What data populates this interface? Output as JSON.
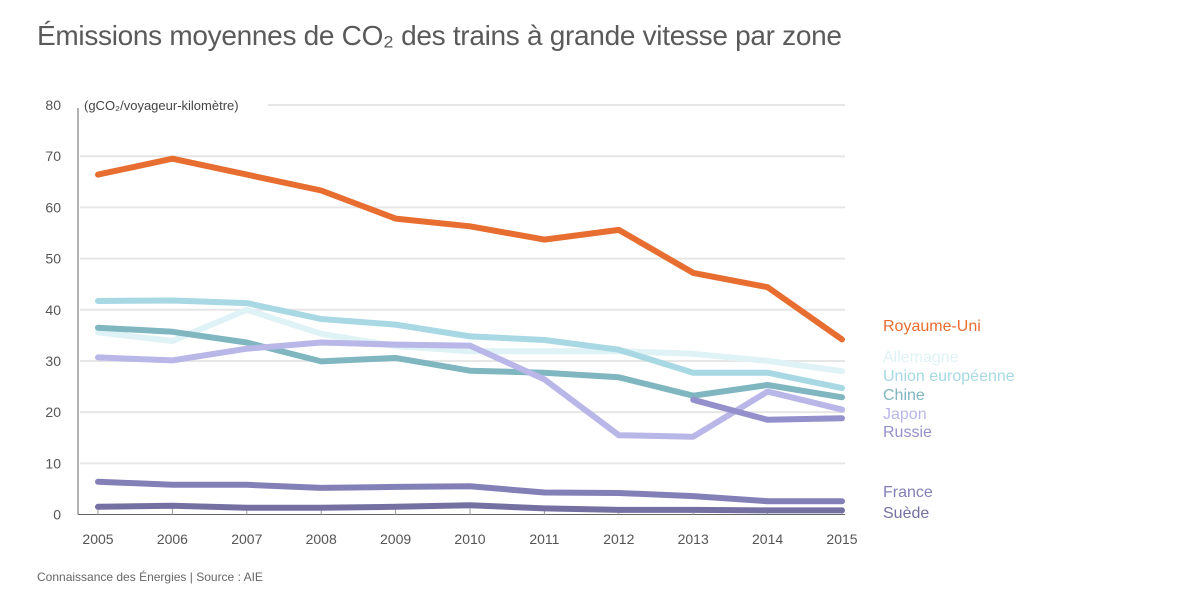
{
  "page": {
    "title": "Émissions moyennes de CO₂ des trains à grande vitesse par zone",
    "source": "Connaissance des Énergies | Source : AIE"
  },
  "chart_data": {
    "type": "line",
    "title": "Émissions moyennes de CO₂ des trains à grande vitesse par zone",
    "xlabel": "",
    "ylabel": "(gCO₂/voyageur-kilomètre)",
    "x": [
      2005,
      2006,
      2007,
      2008,
      2009,
      2010,
      2011,
      2012,
      2013,
      2014,
      2015
    ],
    "x_tick_labels": [
      "2005",
      "2006",
      "2007",
      "2008",
      "2009",
      "2010",
      "2011",
      "2012",
      "2013",
      "2014",
      "2015"
    ],
    "ylim": [
      0,
      80
    ],
    "y_ticks": [
      0,
      10,
      20,
      30,
      40,
      50,
      60,
      70,
      80
    ],
    "y_tick_labels": [
      "0",
      "10",
      "20",
      "30",
      "40",
      "50",
      "60",
      "70",
      "80"
    ],
    "grid": true,
    "legend_placement": "right (labels at line ends)",
    "series": [
      {
        "name": "Royaume-Uni",
        "color": "#e76e30",
        "values": [
          66.4,
          69.5,
          66.4,
          63.3,
          57.8,
          56.3,
          53.7,
          55.6,
          47.2,
          44.4,
          34.2
        ]
      },
      {
        "name": "Allemagne",
        "color": "#dff2f6",
        "values": [
          35.6,
          33.9,
          40.0,
          35.3,
          32.9,
          31.9,
          31.9,
          31.9,
          31.4,
          30.0,
          28.0
        ]
      },
      {
        "name": "Union européenne",
        "color": "#a7d8e3",
        "values": [
          41.7,
          41.8,
          41.3,
          38.2,
          37.1,
          34.8,
          34.1,
          32.2,
          27.7,
          27.7,
          24.7
        ]
      },
      {
        "name": "Chine",
        "color": "#7fb6c0",
        "values": [
          36.5,
          35.7,
          33.6,
          29.9,
          30.6,
          28.1,
          27.7,
          26.8,
          23.2,
          25.3,
          22.9
        ]
      },
      {
        "name": "Japon",
        "color": "#b9b6e8",
        "values": [
          30.7,
          30.1,
          32.4,
          33.6,
          33.2,
          33.0,
          26.4,
          15.5,
          15.2,
          24.0,
          20.5
        ]
      },
      {
        "name": "Russie",
        "color": "#9490cc",
        "values": [
          null,
          null,
          null,
          null,
          null,
          null,
          null,
          null,
          22.4,
          18.5,
          18.8
        ]
      },
      {
        "name": "France",
        "color": "#8380b8",
        "values": [
          6.4,
          5.8,
          5.8,
          5.2,
          5.4,
          5.5,
          4.3,
          4.2,
          3.6,
          2.6,
          2.6
        ]
      },
      {
        "name": "Suède",
        "color": "#7471a2",
        "values": [
          1.5,
          1.7,
          1.3,
          1.3,
          1.5,
          1.8,
          1.2,
          0.9,
          0.9,
          0.8,
          0.8
        ]
      }
    ]
  }
}
